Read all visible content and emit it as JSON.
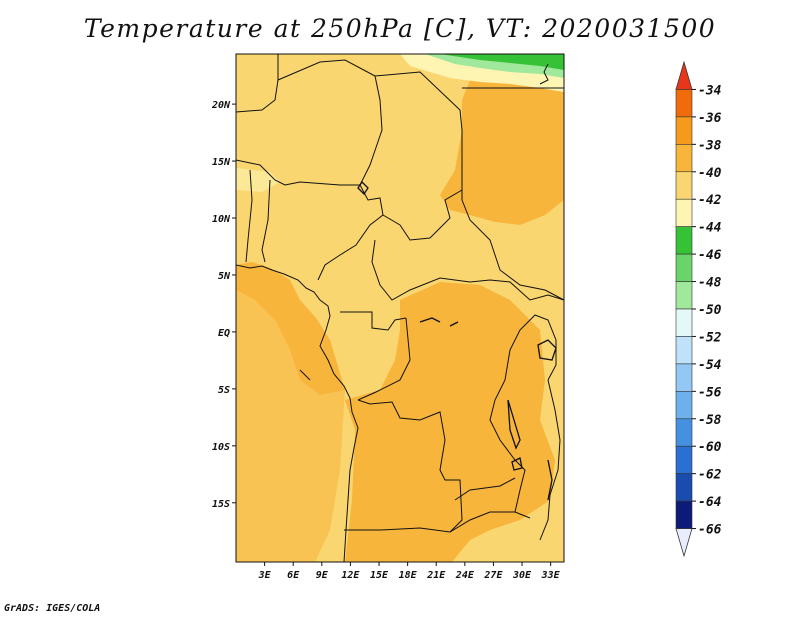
{
  "title": "Temperature at 250hPa [C], VT: 2020031500",
  "footer": "GrADS: IGES/COLA",
  "map": {
    "lat_labels": [
      "20N",
      "15N",
      "10N",
      "5N",
      "EQ",
      "5S",
      "10S",
      "15S"
    ],
    "lat_values": [
      20,
      15,
      10,
      5,
      0,
      -5,
      -10,
      -15
    ],
    "lon_labels": [
      "3E",
      "6E",
      "9E",
      "12E",
      "15E",
      "18E",
      "21E",
      "24E",
      "27E",
      "30E",
      "33E"
    ],
    "lon_values": [
      3,
      6,
      9,
      12,
      15,
      18,
      21,
      24,
      27,
      30,
      33
    ]
  },
  "colorbar": {
    "labels": [
      "-34",
      "-36",
      "-38",
      "-40",
      "-42",
      "-44",
      "-46",
      "-48",
      "-50",
      "-52",
      "-54",
      "-56",
      "-58",
      "-60",
      "-62",
      "-64",
      "-66"
    ],
    "colors": [
      "#e8361a",
      "#f26b0a",
      "#f59a1b",
      "#f7b53c",
      "#fad670",
      "#fef5b2",
      "#36c236",
      "#6ad46a",
      "#a0e89c",
      "#e4f8f8",
      "#bfe2fa",
      "#93c8f4",
      "#6db0ec",
      "#4590e0",
      "#2a6fd2",
      "#1a4cb0",
      "#0c1a78",
      "#e8ecfc"
    ]
  }
}
